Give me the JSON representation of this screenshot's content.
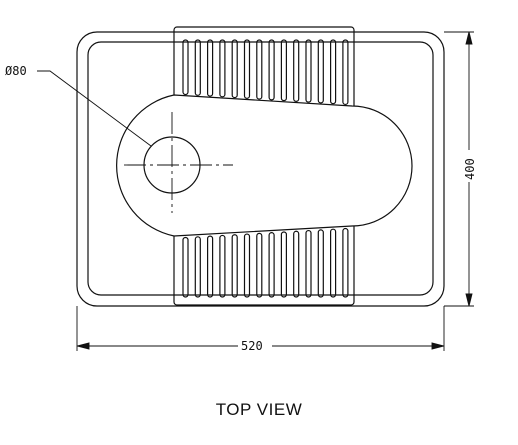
{
  "drawing": {
    "caption": "TOP VIEW",
    "dimensions": {
      "width_label": "520",
      "height_label": "400",
      "hole_label": "Ø80"
    },
    "line_color": "#111111"
  }
}
